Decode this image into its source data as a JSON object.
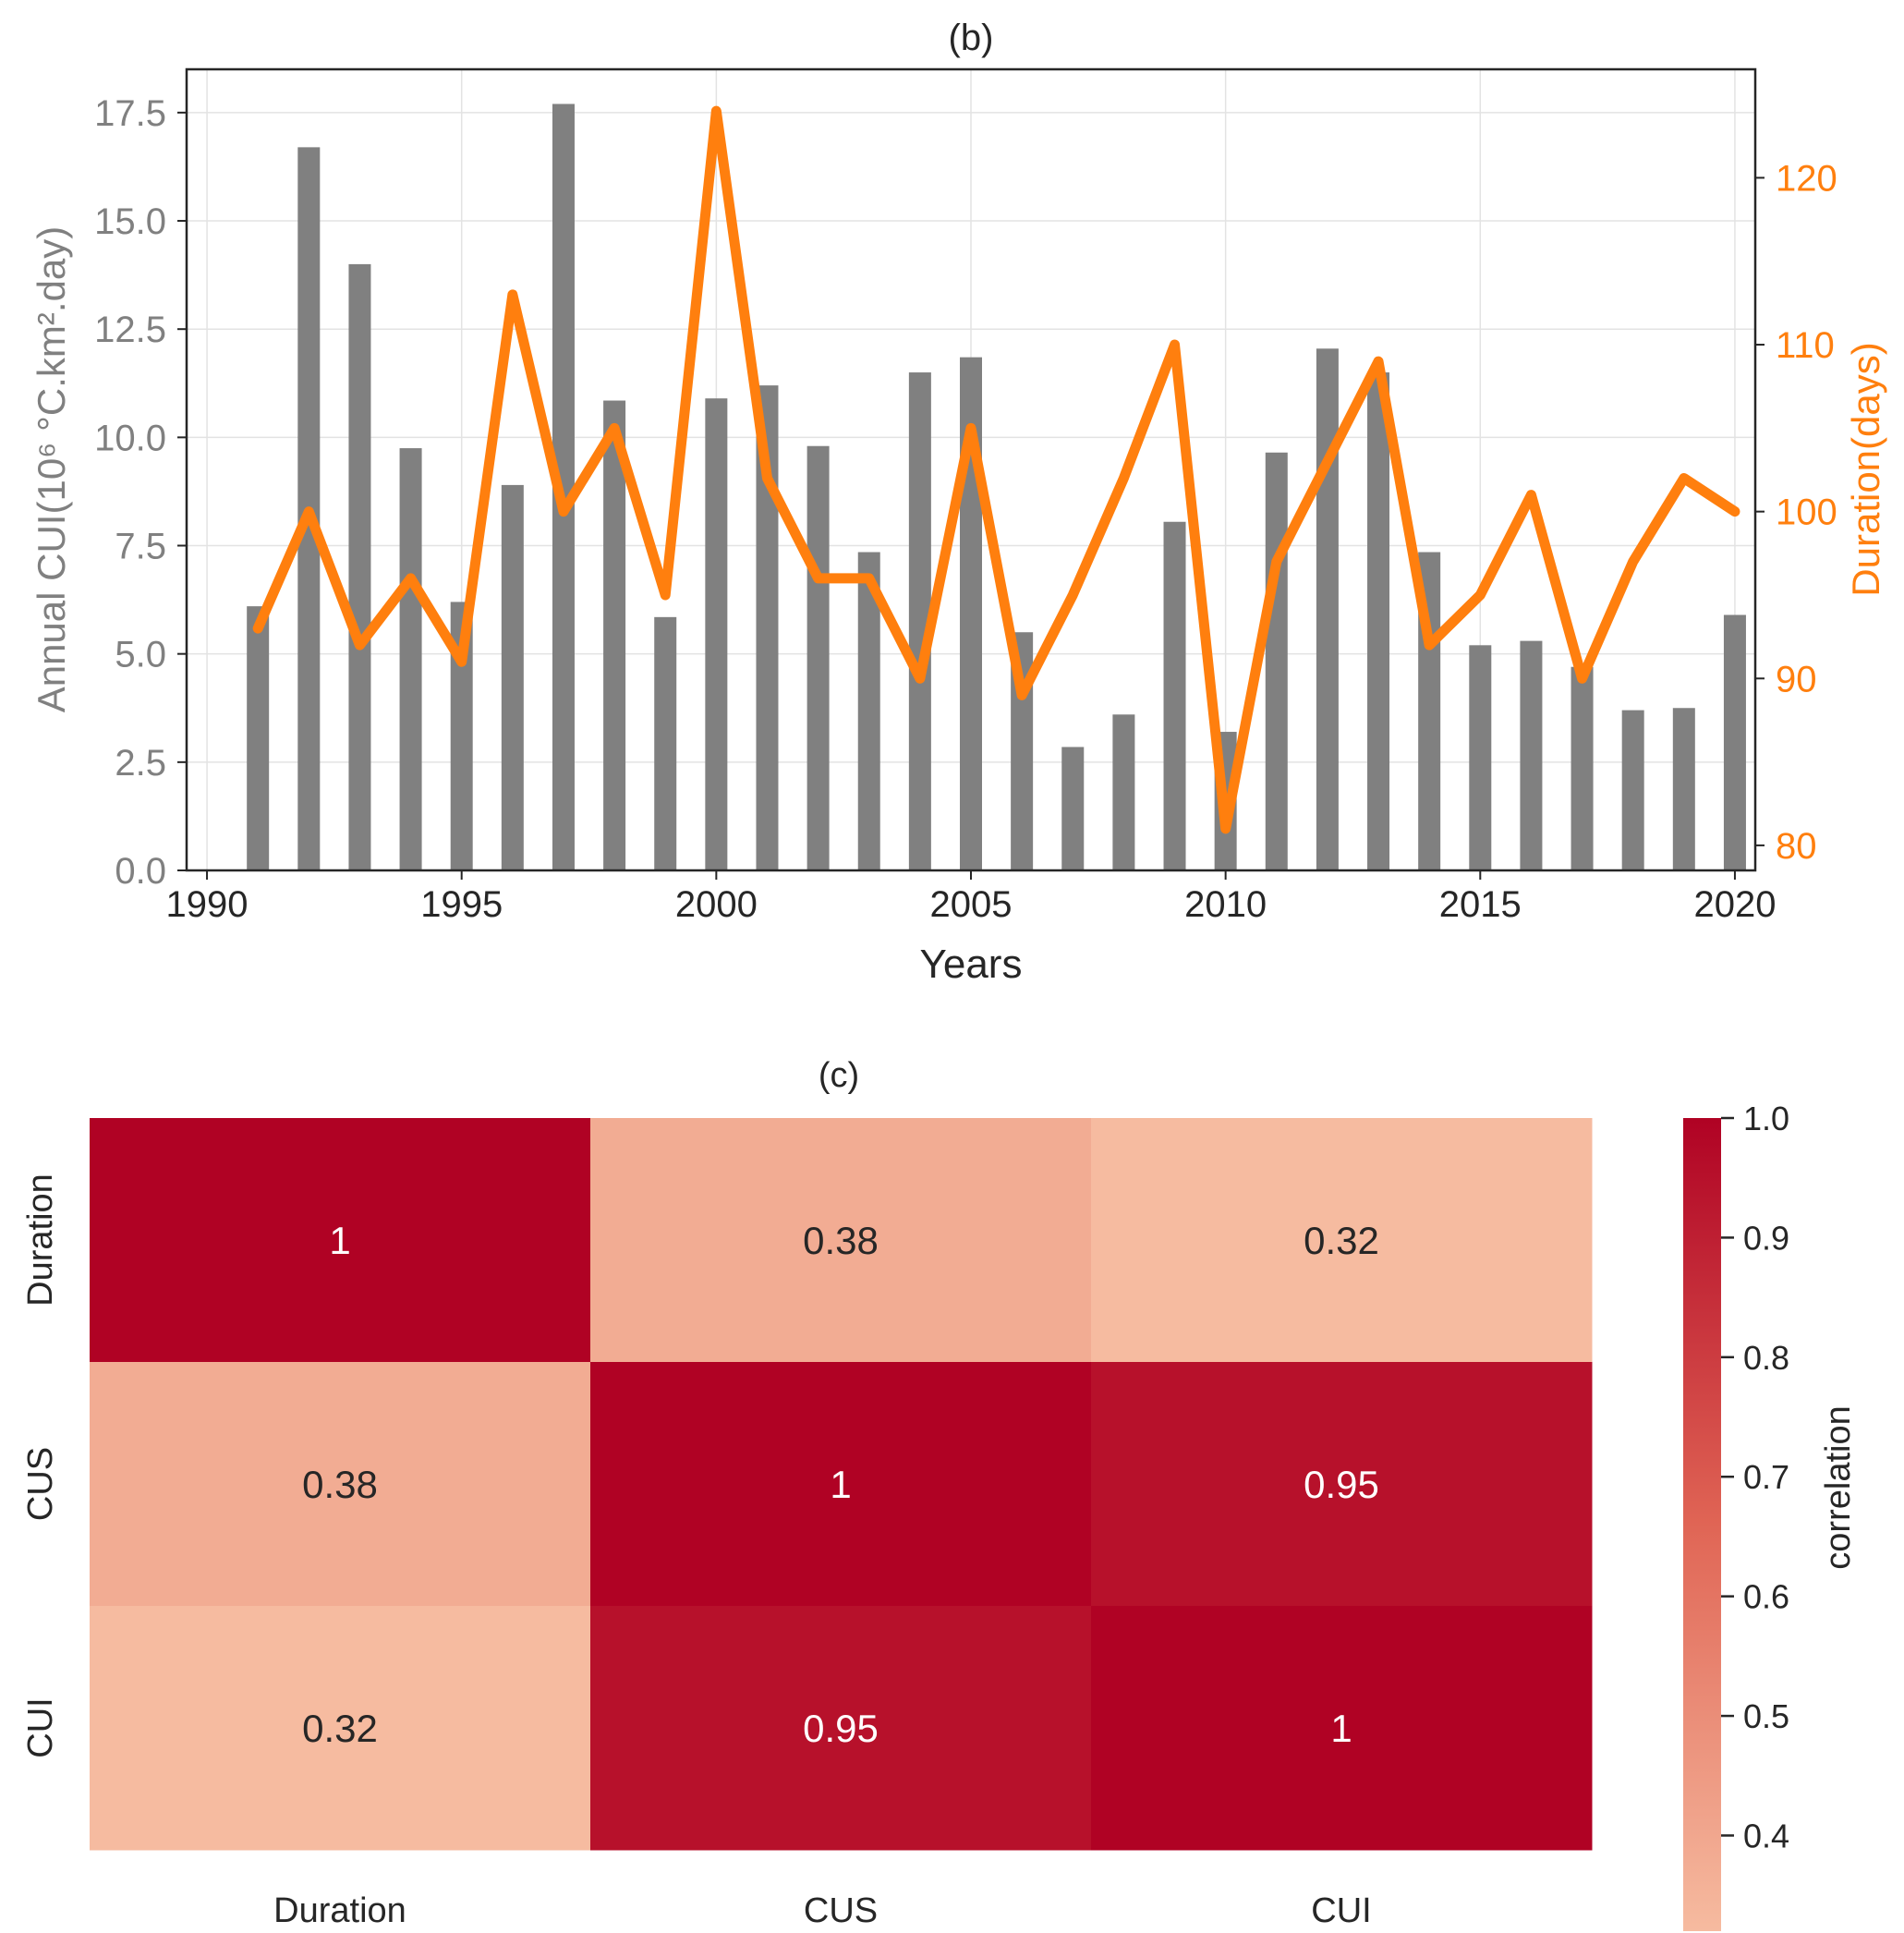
{
  "chart_data": [
    {
      "type": "bar",
      "title": "(b)",
      "xlabel": "Years",
      "ylabel": "Annual CUI(10⁶ °C.km².day)",
      "ylabel_secondary": "Duration(days)",
      "xlim": [
        1989.6,
        2020.4
      ],
      "ylim": [
        0,
        18.5
      ],
      "ylim_secondary": [
        78.5,
        126.5
      ],
      "x_ticks": [
        "1990",
        "1995",
        "2000",
        "2005",
        "2010",
        "2015",
        "2020"
      ],
      "x_tick_values": [
        1990,
        1995,
        2000,
        2005,
        2010,
        2015,
        2020
      ],
      "y_ticks": [
        "0.0",
        "2.5",
        "5.0",
        "7.5",
        "10.0",
        "12.5",
        "15.0",
        "17.5"
      ],
      "y_tick_values": [
        0,
        2.5,
        5,
        7.5,
        10,
        12.5,
        15,
        17.5
      ],
      "y2_ticks": [
        "80",
        "90",
        "100",
        "110",
        "120"
      ],
      "y2_tick_values": [
        80,
        90,
        100,
        110,
        120
      ],
      "grid": true,
      "x": [
        1991,
        1992,
        1993,
        1994,
        1995,
        1996,
        1997,
        1998,
        1999,
        2000,
        2001,
        2002,
        2003,
        2004,
        2005,
        2006,
        2007,
        2008,
        2009,
        2010,
        2011,
        2012,
        2013,
        2014,
        2015,
        2016,
        2017,
        2018,
        2019,
        2020
      ],
      "series": [
        {
          "name": "Annual CUI",
          "kind": "bar",
          "axis": "left",
          "color": "#808080",
          "values": [
            6.1,
            16.7,
            14.0,
            9.75,
            6.2,
            8.9,
            17.7,
            10.85,
            5.85,
            10.9,
            11.2,
            9.8,
            7.35,
            11.5,
            11.85,
            5.5,
            2.85,
            3.6,
            8.05,
            3.2,
            9.65,
            12.05,
            11.5,
            7.35,
            5.2,
            5.3,
            4.7,
            3.7,
            3.75,
            5.9
          ]
        },
        {
          "name": "Duration",
          "kind": "line",
          "axis": "right",
          "color": "#ff7f0e",
          "values": [
            93,
            100,
            92,
            96,
            91,
            113,
            100,
            105,
            95,
            124,
            102,
            96,
            96,
            90,
            105,
            89,
            95,
            102,
            110,
            81,
            97,
            103,
            109,
            92,
            95,
            101,
            90,
            97,
            102,
            100
          ]
        }
      ]
    },
    {
      "type": "heatmap",
      "title": "(c)",
      "rows": [
        "Duration",
        "CUS",
        "CUI"
      ],
      "columns": [
        "Duration",
        "CUS",
        "CUI"
      ],
      "values": [
        [
          1,
          0.38,
          0.32
        ],
        [
          0.38,
          1,
          0.95
        ],
        [
          0.32,
          0.95,
          1
        ]
      ],
      "labels": [
        [
          "1",
          "0.38",
          "0.32"
        ],
        [
          "0.38",
          "1",
          "0.95"
        ],
        [
          "0.32",
          "0.95",
          "1"
        ]
      ],
      "colorbar": {
        "label": "correlation",
        "vmin": 0.32,
        "vmax": 1.0,
        "ticks": [
          "0.4",
          "0.5",
          "0.6",
          "0.7",
          "0.8",
          "0.9",
          "1.0"
        ],
        "tick_values": [
          0.4,
          0.5,
          0.6,
          0.7,
          0.8,
          0.9,
          1.0
        ],
        "color_low": "#f6bba0",
        "color_high": "#b00224"
      }
    }
  ]
}
